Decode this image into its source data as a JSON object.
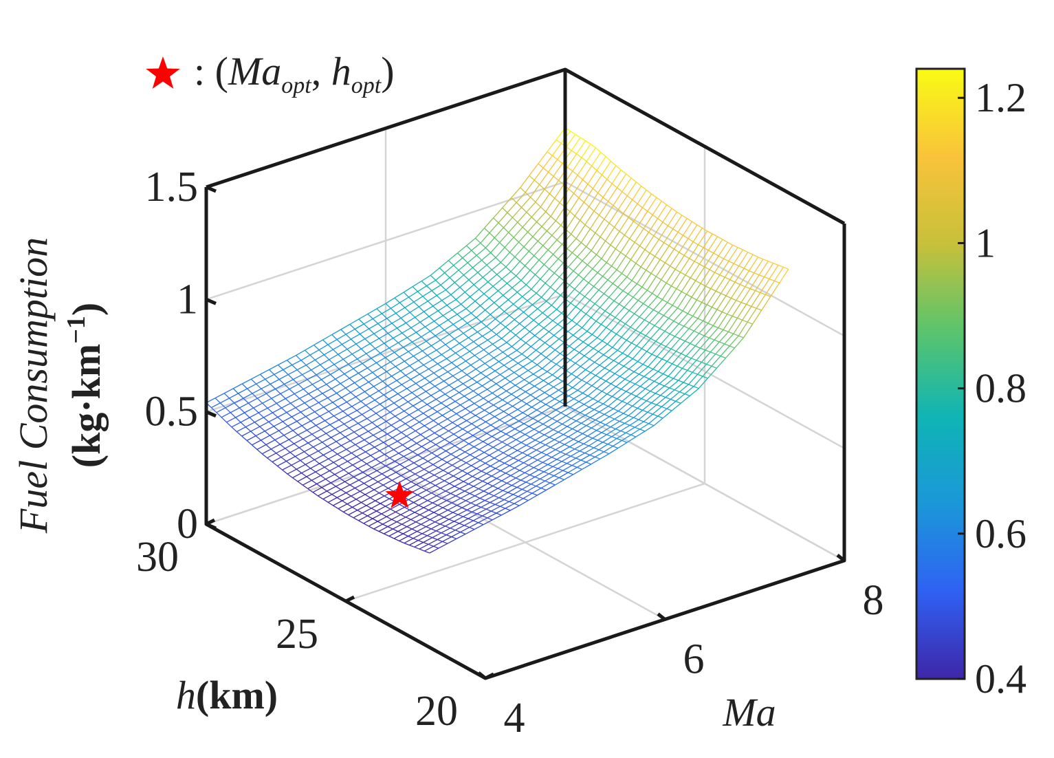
{
  "chart_data": {
    "type": "surface3d",
    "title": "",
    "x": {
      "label_var": "Ma",
      "label_text": "Ma",
      "range": [
        4,
        8
      ],
      "ticks": [
        4,
        6,
        8
      ],
      "tick_labels": [
        "4",
        "6",
        "8"
      ],
      "surface_range": [
        4,
        8
      ]
    },
    "y": {
      "label_var": "h",
      "label_unit": "(km)",
      "range": [
        20,
        30
      ],
      "ticks": [
        20,
        25,
        30
      ],
      "tick_labels": [
        "20",
        "25",
        "30"
      ],
      "surface_range": [
        22,
        30
      ]
    },
    "z": {
      "label_var": "Fuel Consumption",
      "label_unit": "(kg·km",
      "label_unit_exp": "−1",
      "label_unit_close": ")",
      "range": [
        0,
        1.5
      ],
      "ticks": [
        0,
        0.5,
        1,
        1.5
      ],
      "tick_labels": [
        "0",
        "0.5",
        "1",
        "1.5"
      ]
    },
    "series": [
      {
        "name": "fuel consumption surface",
        "grid_Ma": [
          4.0,
          4.5,
          5.0,
          5.5,
          6.0,
          6.5,
          7.0,
          7.5,
          8.0
        ],
        "grid_h": [
          22,
          23,
          24,
          25,
          26,
          27,
          28,
          29,
          30
        ],
        "values": [
          [
            0.42,
            0.46,
            0.5,
            0.55,
            0.6,
            0.66,
            0.76,
            0.92,
            1.16
          ],
          [
            0.4,
            0.44,
            0.48,
            0.53,
            0.58,
            0.64,
            0.74,
            0.9,
            1.14
          ],
          [
            0.39,
            0.43,
            0.47,
            0.52,
            0.57,
            0.63,
            0.73,
            0.89,
            1.13
          ],
          [
            0.39,
            0.43,
            0.47,
            0.52,
            0.57,
            0.63,
            0.73,
            0.89,
            1.13
          ],
          [
            0.4,
            0.44,
            0.48,
            0.53,
            0.58,
            0.64,
            0.74,
            0.9,
            1.14
          ],
          [
            0.42,
            0.46,
            0.5,
            0.55,
            0.6,
            0.66,
            0.76,
            0.92,
            1.16
          ],
          [
            0.45,
            0.49,
            0.53,
            0.58,
            0.63,
            0.69,
            0.79,
            0.95,
            1.19
          ],
          [
            0.49,
            0.53,
            0.57,
            0.62,
            0.67,
            0.73,
            0.83,
            0.99,
            1.23
          ],
          [
            0.54,
            0.58,
            0.62,
            0.67,
            0.72,
            0.78,
            0.88,
            1.04,
            1.24
          ]
        ]
      }
    ],
    "optimum": {
      "Ma": 4.6,
      "h": 25.0,
      "value": 0.39,
      "marker": "red-star"
    },
    "legend": {
      "marker_text": ":",
      "var1": "Ma",
      "sub1": "opt",
      "var2": "h",
      "sub2": "opt",
      "placement": "top-left"
    },
    "colorbar": {
      "range": [
        0.4,
        1.24
      ],
      "ticks": [
        0.4,
        0.6,
        0.8,
        1.0,
        1.2
      ],
      "tick_labels": [
        "0.4",
        "0.6",
        "0.8",
        "1",
        "1.2"
      ],
      "colormap": [
        "#3e26a8",
        "#2f61f3",
        "#1b97d9",
        "#0fb4b5",
        "#5bc46c",
        "#c8c03a",
        "#f9c33a",
        "#f9fb14"
      ]
    },
    "grid": true
  }
}
